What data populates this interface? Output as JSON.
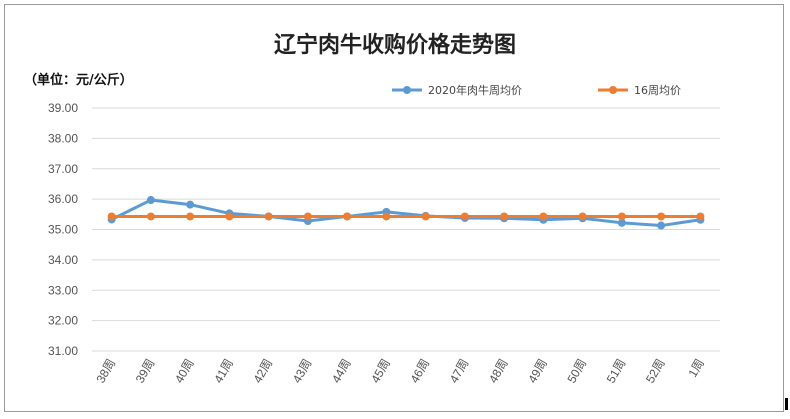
{
  "chart_data": {
    "type": "line",
    "title": "辽宁肉牛收购价格走势图",
    "unit_label": "（单位：元/公斤）",
    "categories": [
      "38周",
      "39周",
      "40周",
      "41周",
      "42周",
      "43周",
      "44周",
      "45周",
      "46周",
      "47周",
      "48周",
      "49周",
      "50周",
      "51周",
      "52周",
      "1周"
    ],
    "ylim": [
      31.0,
      39.0
    ],
    "yticks": [
      "31.00",
      "32.00",
      "33.00",
      "34.00",
      "35.00",
      "36.00",
      "37.00",
      "38.00",
      "39.00"
    ],
    "grid": true,
    "legend_position": "top-right",
    "series": [
      {
        "name": "2020年肉牛周均价",
        "color": "#5b9bd5",
        "values": [
          35.33,
          35.97,
          35.82,
          35.53,
          35.43,
          35.28,
          35.43,
          35.58,
          35.45,
          35.38,
          35.37,
          35.32,
          35.37,
          35.22,
          35.13,
          35.32
        ]
      },
      {
        "name": "16周均价",
        "color": "#ed7d31",
        "values": [
          35.43,
          35.43,
          35.43,
          35.43,
          35.43,
          35.43,
          35.43,
          35.43,
          35.43,
          35.43,
          35.43,
          35.43,
          35.43,
          35.43,
          35.43,
          35.43
        ]
      }
    ]
  }
}
